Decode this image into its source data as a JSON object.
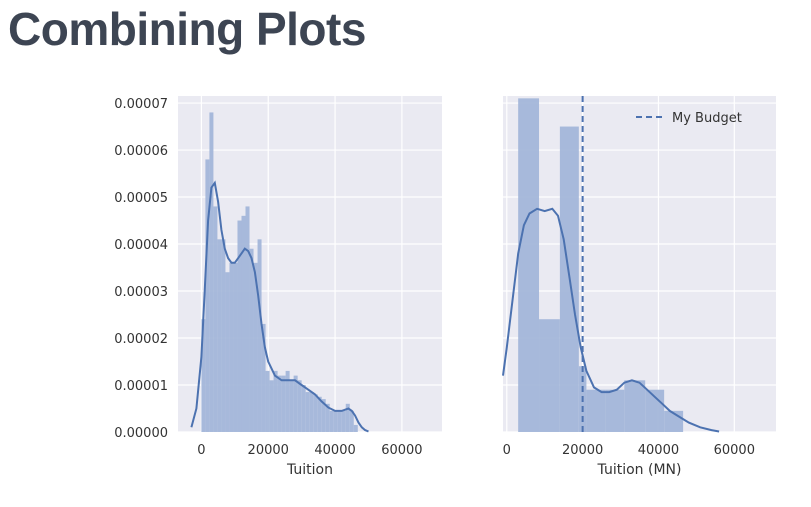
{
  "slide": {
    "title": "Combining Plots"
  },
  "colors": {
    "panel_bg": "#eaeaf2",
    "grid": "#ffffff",
    "hist_fill": "#a3b6d9",
    "kde_line": "#4c72b0",
    "budget_line": "#4c72b0"
  },
  "chart_data": [
    {
      "type": "histogram",
      "xlabel": "Tuition",
      "ylabel": "",
      "xlim": [
        -7000,
        72000
      ],
      "ylim": [
        0,
        7.15e-05
      ],
      "xticks": [
        0,
        20000,
        40000,
        60000
      ],
      "yticks": [
        0,
        1e-05,
        2e-05,
        3e-05,
        4e-05,
        5e-05,
        6e-05,
        7e-05
      ],
      "ytick_labels": [
        "0.00000",
        "0.00001",
        "0.00002",
        "0.00003",
        "0.00004",
        "0.00005",
        "0.00006",
        "0.00007"
      ],
      "grid": true,
      "bins": [
        {
          "x0": 0,
          "x1": 1200,
          "y": 2.4e-05
        },
        {
          "x0": 1200,
          "x1": 2400,
          "y": 5.8e-05
        },
        {
          "x0": 2400,
          "x1": 3600,
          "y": 6.8e-05
        },
        {
          "x0": 3600,
          "x1": 4800,
          "y": 4.8e-05
        },
        {
          "x0": 4800,
          "x1": 6000,
          "y": 4.1e-05
        },
        {
          "x0": 6000,
          "x1": 7200,
          "y": 4.1e-05
        },
        {
          "x0": 7200,
          "x1": 8400,
          "y": 3.4e-05
        },
        {
          "x0": 8400,
          "x1": 9600,
          "y": 3.6e-05
        },
        {
          "x0": 9600,
          "x1": 10800,
          "y": 3.6e-05
        },
        {
          "x0": 10800,
          "x1": 12000,
          "y": 4.5e-05
        },
        {
          "x0": 12000,
          "x1": 13200,
          "y": 4.6e-05
        },
        {
          "x0": 13200,
          "x1": 14400,
          "y": 4.8e-05
        },
        {
          "x0": 14400,
          "x1": 15600,
          "y": 3.9e-05
        },
        {
          "x0": 15600,
          "x1": 16800,
          "y": 3.6e-05
        },
        {
          "x0": 16800,
          "x1": 18000,
          "y": 4.1e-05
        },
        {
          "x0": 18000,
          "x1": 19200,
          "y": 2.3e-05
        },
        {
          "x0": 19200,
          "x1": 20400,
          "y": 1.3e-05
        },
        {
          "x0": 20400,
          "x1": 21600,
          "y": 1.1e-05
        },
        {
          "x0": 21600,
          "x1": 22800,
          "y": 1.3e-05
        },
        {
          "x0": 22800,
          "x1": 24000,
          "y": 1.2e-05
        },
        {
          "x0": 24000,
          "x1": 25200,
          "y": 1.2e-05
        },
        {
          "x0": 25200,
          "x1": 26400,
          "y": 1.3e-05
        },
        {
          "x0": 26400,
          "x1": 27600,
          "y": 1.1e-05
        },
        {
          "x0": 27600,
          "x1": 28800,
          "y": 1.2e-05
        },
        {
          "x0": 28800,
          "x1": 30000,
          "y": 1.1e-05
        },
        {
          "x0": 30000,
          "x1": 31200,
          "y": 1e-05
        },
        {
          "x0": 31200,
          "x1": 32400,
          "y": 8.5e-06
        },
        {
          "x0": 32400,
          "x1": 33600,
          "y": 8.5e-06
        },
        {
          "x0": 33600,
          "x1": 34800,
          "y": 8e-06
        },
        {
          "x0": 34800,
          "x1": 36000,
          "y": 7.5e-06
        },
        {
          "x0": 36000,
          "x1": 37200,
          "y": 7e-06
        },
        {
          "x0": 37200,
          "x1": 38400,
          "y": 6e-06
        },
        {
          "x0": 38400,
          "x1": 39600,
          "y": 4.5e-06
        },
        {
          "x0": 39600,
          "x1": 40800,
          "y": 4.5e-06
        },
        {
          "x0": 40800,
          "x1": 42000,
          "y": 4.5e-06
        },
        {
          "x0": 42000,
          "x1": 43200,
          "y": 4.5e-06
        },
        {
          "x0": 43200,
          "x1": 44400,
          "y": 6e-06
        },
        {
          "x0": 44400,
          "x1": 45600,
          "y": 4.5e-06
        },
        {
          "x0": 45600,
          "x1": 46800,
          "y": 1.5e-06
        }
      ],
      "kde": [
        [
          -3000,
          1e-06
        ],
        [
          -1500,
          5e-06
        ],
        [
          0,
          1.6e-05
        ],
        [
          1000,
          3e-05
        ],
        [
          2000,
          4.5e-05
        ],
        [
          3000,
          5.2e-05
        ],
        [
          4000,
          5.3e-05
        ],
        [
          5000,
          4.9e-05
        ],
        [
          6000,
          4.3e-05
        ],
        [
          7000,
          3.9e-05
        ],
        [
          8000,
          3.7e-05
        ],
        [
          9000,
          3.6e-05
        ],
        [
          10000,
          3.6e-05
        ],
        [
          11000,
          3.7e-05
        ],
        [
          12000,
          3.8e-05
        ],
        [
          13000,
          3.9e-05
        ],
        [
          14000,
          3.85e-05
        ],
        [
          15000,
          3.7e-05
        ],
        [
          16000,
          3.4e-05
        ],
        [
          17000,
          2.9e-05
        ],
        [
          18000,
          2.3e-05
        ],
        [
          19000,
          1.8e-05
        ],
        [
          20000,
          1.5e-05
        ],
        [
          22000,
          1.2e-05
        ],
        [
          24000,
          1.1e-05
        ],
        [
          26000,
          1.1e-05
        ],
        [
          28000,
          1.1e-05
        ],
        [
          30000,
          1e-05
        ],
        [
          32000,
          9e-06
        ],
        [
          34000,
          8e-06
        ],
        [
          36000,
          6.5e-06
        ],
        [
          38000,
          5.2e-06
        ],
        [
          40000,
          4.5e-06
        ],
        [
          42000,
          4.5e-06
        ],
        [
          44000,
          5e-06
        ],
        [
          45000,
          4.5e-06
        ],
        [
          46000,
          3.5e-06
        ],
        [
          47000,
          2e-06
        ],
        [
          48000,
          1e-06
        ],
        [
          49000,
          4e-07
        ],
        [
          50000,
          1e-07
        ]
      ]
    },
    {
      "type": "histogram",
      "xlabel": "Tuition (MN)",
      "ylabel": "",
      "xlim": [
        -1000,
        71000
      ],
      "ylim": [
        0,
        7.15e-05
      ],
      "xticks": [
        0,
        20000,
        40000,
        60000
      ],
      "yticks": [
        0,
        1e-05,
        2e-05,
        3e-05,
        4e-05,
        5e-05,
        6e-05,
        7e-05
      ],
      "grid": true,
      "bins": [
        {
          "x0": 3000,
          "x1": 8500,
          "y": 7.1e-05
        },
        {
          "x0": 8500,
          "x1": 14000,
          "y": 2.4e-05
        },
        {
          "x0": 14000,
          "x1": 19000,
          "y": 6.5e-05
        },
        {
          "x0": 19000,
          "x1": 21000,
          "y": 1.4e-05
        },
        {
          "x0": 21000,
          "x1": 26000,
          "y": 9e-06
        },
        {
          "x0": 26000,
          "x1": 31000,
          "y": 9e-06
        },
        {
          "x0": 31000,
          "x1": 36500,
          "y": 1.1e-05
        },
        {
          "x0": 36500,
          "x1": 41500,
          "y": 9e-06
        },
        {
          "x0": 41500,
          "x1": 46500,
          "y": 4.5e-06
        }
      ],
      "kde": [
        [
          -1000,
          1.2e-05
        ],
        [
          0,
          1.8e-05
        ],
        [
          1500,
          2.8e-05
        ],
        [
          3000,
          3.8e-05
        ],
        [
          4500,
          4.4e-05
        ],
        [
          6000,
          4.65e-05
        ],
        [
          8000,
          4.75e-05
        ],
        [
          10000,
          4.7e-05
        ],
        [
          12000,
          4.75e-05
        ],
        [
          13500,
          4.6e-05
        ],
        [
          15000,
          4.1e-05
        ],
        [
          16500,
          3.3e-05
        ],
        [
          18000,
          2.5e-05
        ],
        [
          19500,
          1.8e-05
        ],
        [
          21000,
          1.3e-05
        ],
        [
          23000,
          9.5e-06
        ],
        [
          25000,
          8.5e-06
        ],
        [
          27000,
          8.5e-06
        ],
        [
          29000,
          9e-06
        ],
        [
          31000,
          1.05e-05
        ],
        [
          33000,
          1.1e-05
        ],
        [
          35000,
          1.05e-05
        ],
        [
          37000,
          9e-06
        ],
        [
          39000,
          7.5e-06
        ],
        [
          41000,
          6e-06
        ],
        [
          43000,
          4.5e-06
        ],
        [
          45000,
          3.5e-06
        ],
        [
          48000,
          2e-06
        ],
        [
          51000,
          1e-06
        ],
        [
          54000,
          4e-07
        ],
        [
          56000,
          1e-07
        ]
      ],
      "vline": {
        "x": 20000,
        "label": "My Budget",
        "style": "dashed"
      },
      "legend": {
        "placement": "top-right",
        "entries": [
          "My Budget"
        ]
      }
    }
  ]
}
